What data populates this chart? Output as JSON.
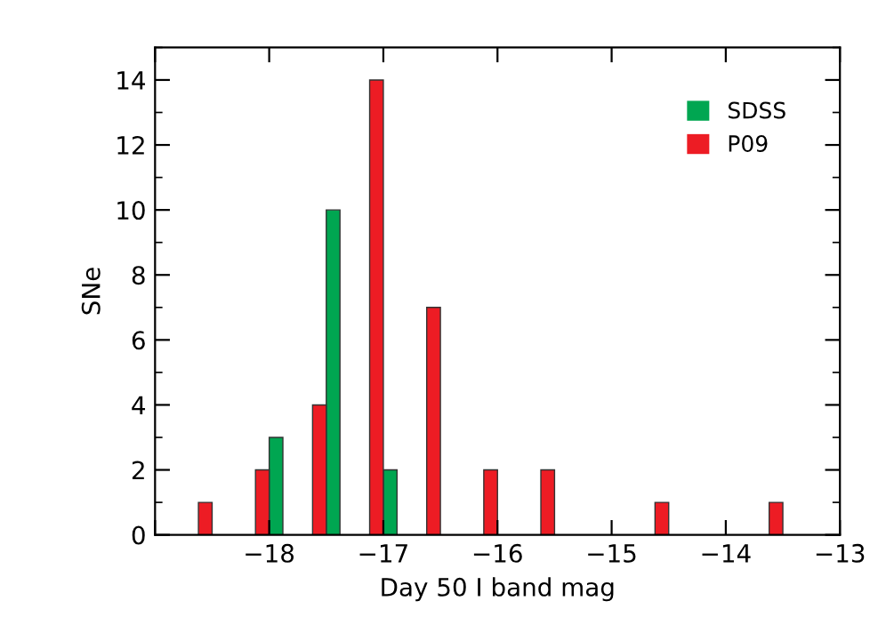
{
  "chart_data": {
    "type": "bar",
    "xlabel": "Day 50 I band mag",
    "ylabel": "SNe",
    "series": [
      {
        "name": "SDSS",
        "color": "#00a651",
        "x": [
          -18,
          -17.5,
          -17
        ],
        "values": [
          3,
          10,
          2
        ]
      },
      {
        "name": "P09",
        "color": "#ed1c24",
        "x": [
          -18.5,
          -18,
          -17.5,
          -17,
          -16.5,
          -16,
          -15.5,
          -14.5,
          -13.5
        ],
        "values": [
          1,
          2,
          4,
          14,
          7,
          2,
          2,
          1,
          1
        ]
      }
    ],
    "xlim": [
      -19,
      -13
    ],
    "xticks": [
      {
        "value": -19,
        "label": null
      },
      -18,
      -17,
      -16,
      -15,
      -14,
      -13
    ],
    "ylim": [
      0,
      15
    ],
    "yticks": [
      0,
      2,
      4,
      6,
      8,
      10,
      12,
      14
    ],
    "legend": "top right",
    "grid": false
  }
}
